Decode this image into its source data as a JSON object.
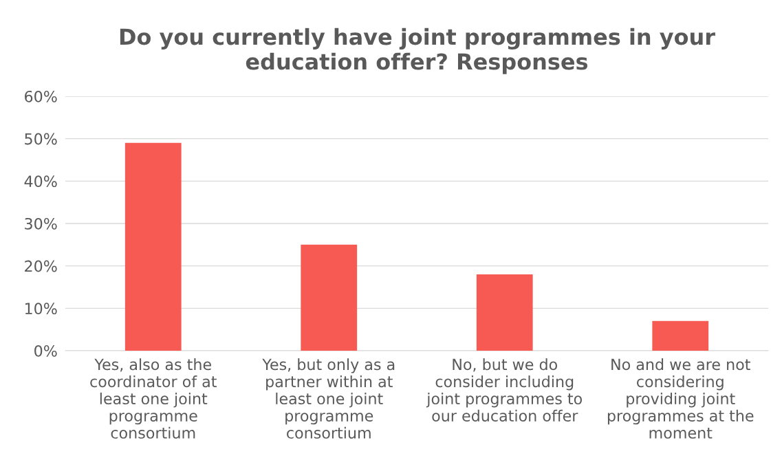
{
  "chart_data": {
    "type": "bar",
    "title": "Do you currently have joint programmes in your\neducation offer? Responses",
    "categories": [
      "Yes, also as the\ncoordinator of at\nleast one joint\nprogramme\nconsortium",
      "Yes, but only as a\npartner within at\nleast one joint\nprogramme\nconsortium",
      "No, but we do\nconsider including\njoint programmes to\nour education offer",
      "No and we are not\nconsidering\nproviding joint\nprogrammes at the\nmoment"
    ],
    "values": [
      49,
      25,
      18,
      7
    ],
    "color": "#f65a52",
    "ylim": [
      0,
      60
    ],
    "yticks": [
      {
        "value": 0,
        "label": "0%"
      },
      {
        "value": 10,
        "label": "10%"
      },
      {
        "value": 20,
        "label": "20%"
      },
      {
        "value": 30,
        "label": "30%"
      },
      {
        "value": 40,
        "label": "40%"
      },
      {
        "value": 50,
        "label": "50%"
      },
      {
        "value": 60,
        "label": "60%"
      }
    ],
    "grid": "y",
    "legend": false
  }
}
